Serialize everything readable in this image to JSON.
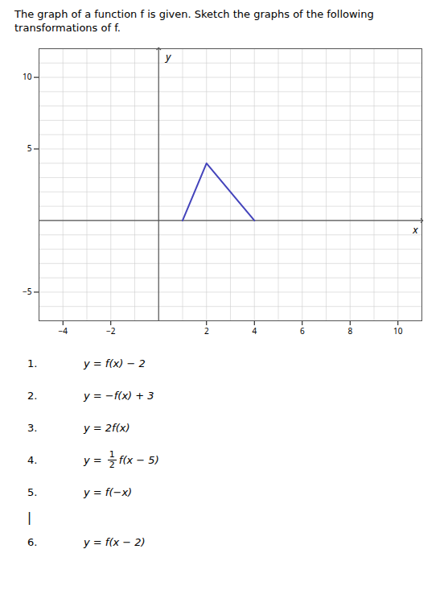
{
  "chart_data": {
    "type": "line",
    "title": "The graph of a function f is given. Sketch the graphs of the following transformations of f.",
    "x": [
      1,
      2,
      4
    ],
    "values": [
      0,
      4,
      0
    ],
    "color": "#4444bb",
    "xlim": [
      -5,
      11
    ],
    "ylim": [
      -7,
      12
    ],
    "xticks": [
      -4,
      -2,
      2,
      4,
      6,
      8,
      10
    ],
    "yticks": [
      -5,
      5,
      10
    ],
    "xlabel": "x",
    "ylabel": "y",
    "grid": true,
    "annotations": [
      [
        "1.",
        "y = f(x) − 2"
      ],
      [
        "2.",
        "y = −f(x) + 3"
      ],
      [
        "3.",
        "y = 2f(x)"
      ],
      [
        "4.",
        "y = ",
        "1",
        "2",
        "f(x − 5)"
      ],
      [
        "5.",
        "y = f(−x)"
      ],
      [
        "|"
      ],
      [
        "6.",
        "y = f(x − 2)"
      ]
    ]
  }
}
